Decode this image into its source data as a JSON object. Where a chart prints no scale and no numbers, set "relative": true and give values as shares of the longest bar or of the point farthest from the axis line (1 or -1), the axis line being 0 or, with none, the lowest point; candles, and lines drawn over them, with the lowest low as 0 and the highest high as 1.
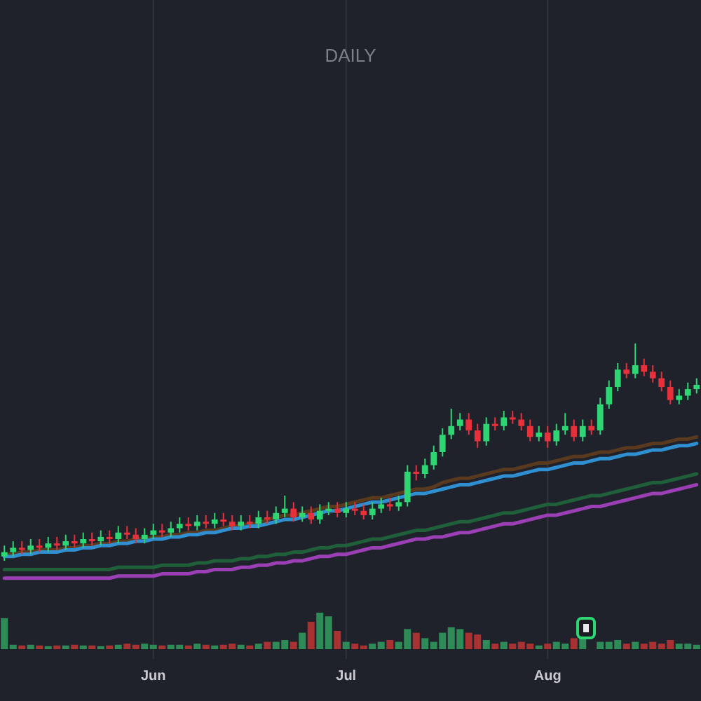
{
  "chart_data": [
    {
      "type": "candlestick",
      "title": "DAILY",
      "relative": true,
      "grid": "x",
      "categories": [
        null,
        null,
        null,
        null,
        null,
        null,
        null,
        null,
        null,
        null,
        null,
        null,
        null,
        null,
        null,
        null,
        null,
        null,
        null,
        null,
        null,
        null,
        null,
        null,
        null,
        null,
        null,
        null,
        null,
        null,
        null,
        null,
        null,
        null,
        null,
        null,
        null,
        null,
        null,
        null,
        null,
        null,
        null,
        null,
        null,
        null,
        null,
        null,
        null,
        null,
        null,
        null,
        null,
        null,
        null,
        null,
        null,
        null,
        null,
        null,
        null,
        null,
        null,
        null,
        null,
        null,
        null,
        null,
        null,
        null,
        null,
        null,
        null,
        null,
        null,
        null,
        null,
        null,
        null,
        null
      ],
      "ohlc": [
        [
          0.02,
          0.07,
          0,
          0.04
        ],
        [
          0.04,
          0.09,
          0.02,
          0.06
        ],
        [
          0.06,
          0.09,
          0.03,
          0.05
        ],
        [
          0.05,
          0.1,
          0.03,
          0.07
        ],
        [
          0.07,
          0.1,
          0.04,
          0.06
        ],
        [
          0.06,
          0.11,
          0.04,
          0.08
        ],
        [
          0.08,
          0.11,
          0.05,
          0.07
        ],
        [
          0.07,
          0.12,
          0.05,
          0.09
        ],
        [
          0.09,
          0.12,
          0.06,
          0.08
        ],
        [
          0.08,
          0.13,
          0.06,
          0.1
        ],
        [
          0.1,
          0.13,
          0.07,
          0.09
        ],
        [
          0.09,
          0.14,
          0.07,
          0.11
        ],
        [
          0.11,
          0.14,
          0.08,
          0.1
        ],
        [
          0.1,
          0.16,
          0.08,
          0.13
        ],
        [
          0.13,
          0.16,
          0.1,
          0.12
        ],
        [
          0.12,
          0.15,
          0.08,
          0.1
        ],
        [
          0.1,
          0.15,
          0.08,
          0.12
        ],
        [
          0.12,
          0.17,
          0.1,
          0.14
        ],
        [
          0.14,
          0.17,
          0.11,
          0.13
        ],
        [
          0.13,
          0.18,
          0.11,
          0.15
        ],
        [
          0.15,
          0.2,
          0.13,
          0.17
        ],
        [
          0.17,
          0.2,
          0.14,
          0.16
        ],
        [
          0.16,
          0.21,
          0.14,
          0.18
        ],
        [
          0.18,
          0.21,
          0.15,
          0.17
        ],
        [
          0.17,
          0.22,
          0.15,
          0.19
        ],
        [
          0.19,
          0.22,
          0.16,
          0.18
        ],
        [
          0.18,
          0.21,
          0.14,
          0.16
        ],
        [
          0.16,
          0.21,
          0.14,
          0.18
        ],
        [
          0.18,
          0.21,
          0.15,
          0.17
        ],
        [
          0.17,
          0.23,
          0.15,
          0.2
        ],
        [
          0.2,
          0.23,
          0.17,
          0.19
        ],
        [
          0.19,
          0.25,
          0.17,
          0.22
        ],
        [
          0.22,
          0.3,
          0.2,
          0.24
        ],
        [
          0.24,
          0.27,
          0.18,
          0.2
        ],
        [
          0.2,
          0.25,
          0.18,
          0.22
        ],
        [
          0.22,
          0.25,
          0.17,
          0.19
        ],
        [
          0.19,
          0.26,
          0.17,
          0.23
        ],
        [
          0.23,
          0.27,
          0.21,
          0.24
        ],
        [
          0.24,
          0.27,
          0.2,
          0.22
        ],
        [
          0.22,
          0.27,
          0.2,
          0.24
        ],
        [
          0.24,
          0.27,
          0.21,
          0.23
        ],
        [
          0.23,
          0.26,
          0.19,
          0.21
        ],
        [
          0.21,
          0.27,
          0.19,
          0.24
        ],
        [
          0.24,
          0.29,
          0.22,
          0.26
        ],
        [
          0.26,
          0.29,
          0.23,
          0.25
        ],
        [
          0.25,
          0.3,
          0.23,
          0.27
        ],
        [
          0.27,
          0.44,
          0.25,
          0.41
        ],
        [
          0.41,
          0.44,
          0.37,
          0.4
        ],
        [
          0.4,
          0.47,
          0.38,
          0.44
        ],
        [
          0.44,
          0.53,
          0.42,
          0.5
        ],
        [
          0.5,
          0.61,
          0.48,
          0.58
        ],
        [
          0.58,
          0.7,
          0.56,
          0.62
        ],
        [
          0.62,
          0.68,
          0.6,
          0.65
        ],
        [
          0.65,
          0.68,
          0.58,
          0.6
        ],
        [
          0.6,
          0.63,
          0.52,
          0.55
        ],
        [
          0.55,
          0.66,
          0.53,
          0.63
        ],
        [
          0.63,
          0.66,
          0.6,
          0.62
        ],
        [
          0.62,
          0.69,
          0.6,
          0.66
        ],
        [
          0.66,
          0.69,
          0.63,
          0.65
        ],
        [
          0.65,
          0.68,
          0.6,
          0.62
        ],
        [
          0.62,
          0.65,
          0.55,
          0.57
        ],
        [
          0.57,
          0.62,
          0.55,
          0.59
        ],
        [
          0.59,
          0.62,
          0.52,
          0.55
        ],
        [
          0.55,
          0.63,
          0.53,
          0.6
        ],
        [
          0.6,
          0.68,
          0.58,
          0.62
        ],
        [
          0.62,
          0.65,
          0.55,
          0.57
        ],
        [
          0.57,
          0.65,
          0.55,
          0.62
        ],
        [
          0.62,
          0.65,
          0.58,
          0.6
        ],
        [
          0.6,
          0.75,
          0.58,
          0.72
        ],
        [
          0.72,
          0.83,
          0.7,
          0.8
        ],
        [
          0.8,
          0.91,
          0.78,
          0.88
        ],
        [
          0.88,
          0.91,
          0.84,
          0.86
        ],
        [
          0.86,
          1,
          0.84,
          0.9
        ],
        [
          0.9,
          0.93,
          0.85,
          0.87
        ],
        [
          0.87,
          0.9,
          0.82,
          0.84
        ],
        [
          0.84,
          0.87,
          0.78,
          0.8
        ],
        [
          0.8,
          0.83,
          0.72,
          0.74
        ],
        [
          0.74,
          0.79,
          0.72,
          0.76
        ],
        [
          0.76,
          0.82,
          0.74,
          0.79
        ],
        [
          0.79,
          0.84,
          0.77,
          0.81
        ]
      ],
      "series": [
        {
          "type": "line",
          "color": "#1f5f3a",
          "values": [
            -0.04,
            -0.04,
            -0.04,
            -0.04,
            -0.04,
            -0.04,
            -0.04,
            -0.04,
            -0.04,
            -0.04,
            -0.04,
            -0.04,
            -0.04,
            -0.03,
            -0.03,
            -0.03,
            -0.03,
            -0.03,
            -0.02,
            -0.02,
            -0.02,
            -0.02,
            -0.01,
            -0.01,
            0,
            0,
            0,
            0.01,
            0.01,
            0.02,
            0.02,
            0.03,
            0.03,
            0.04,
            0.04,
            0.05,
            0.06,
            0.06,
            0.07,
            0.07,
            0.08,
            0.09,
            0.1,
            0.1,
            0.11,
            0.12,
            0.13,
            0.14,
            0.14,
            0.15,
            0.16,
            0.17,
            0.18,
            0.18,
            0.19,
            0.2,
            0.21,
            0.22,
            0.22,
            0.23,
            0.24,
            0.25,
            0.26,
            0.26,
            0.27,
            0.28,
            0.29,
            0.3,
            0.3,
            0.31,
            0.32,
            0.33,
            0.34,
            0.35,
            0.36,
            0.36,
            0.37,
            0.38,
            0.39,
            0.4
          ]
        },
        {
          "type": "line",
          "color": "#9b3fb5",
          "values": [
            -0.08,
            -0.08,
            -0.08,
            -0.08,
            -0.08,
            -0.08,
            -0.08,
            -0.08,
            -0.08,
            -0.08,
            -0.08,
            -0.08,
            -0.08,
            -0.07,
            -0.07,
            -0.07,
            -0.07,
            -0.07,
            -0.06,
            -0.06,
            -0.06,
            -0.06,
            -0.05,
            -0.05,
            -0.04,
            -0.04,
            -0.04,
            -0.03,
            -0.03,
            -0.02,
            -0.02,
            -0.01,
            -0.01,
            0,
            0,
            0.01,
            0.02,
            0.02,
            0.03,
            0.03,
            0.04,
            0.05,
            0.06,
            0.06,
            0.07,
            0.08,
            0.09,
            0.1,
            0.1,
            0.11,
            0.11,
            0.12,
            0.13,
            0.13,
            0.14,
            0.15,
            0.16,
            0.17,
            0.17,
            0.18,
            0.19,
            0.2,
            0.21,
            0.21,
            0.22,
            0.23,
            0.24,
            0.25,
            0.25,
            0.26,
            0.27,
            0.28,
            0.29,
            0.3,
            0.31,
            0.31,
            0.32,
            0.33,
            0.34,
            0.35
          ]
        },
        {
          "type": "line",
          "color": "#5a3a1e",
          "values": [
            0.03,
            0.03,
            0.04,
            0.04,
            0.05,
            0.05,
            0.05,
            0.06,
            0.06,
            0.07,
            0.07,
            0.08,
            0.08,
            0.09,
            0.09,
            0.1,
            0.1,
            0.11,
            0.11,
            0.12,
            0.12,
            0.13,
            0.13,
            0.14,
            0.14,
            0.15,
            0.16,
            0.16,
            0.17,
            0.17,
            0.19,
            0.2,
            0.21,
            0.21,
            0.22,
            0.23,
            0.24,
            0.25,
            0.25,
            0.26,
            0.27,
            0.28,
            0.29,
            0.29,
            0.3,
            0.31,
            0.32,
            0.33,
            0.33,
            0.34,
            0.36,
            0.37,
            0.38,
            0.38,
            0.39,
            0.4,
            0.41,
            0.42,
            0.42,
            0.43,
            0.44,
            0.45,
            0.45,
            0.46,
            0.47,
            0.48,
            0.48,
            0.49,
            0.5,
            0.5,
            0.51,
            0.52,
            0.52,
            0.53,
            0.54,
            0.54,
            0.55,
            0.56,
            0.56,
            0.57
          ]
        },
        {
          "type": "line",
          "color": "#2f8fd0",
          "values": [
            0.02,
            0.02,
            0.03,
            0.03,
            0.04,
            0.04,
            0.04,
            0.05,
            0.05,
            0.06,
            0.06,
            0.07,
            0.07,
            0.08,
            0.08,
            0.09,
            0.09,
            0.1,
            0.1,
            0.11,
            0.11,
            0.12,
            0.12,
            0.13,
            0.13,
            0.14,
            0.15,
            0.15,
            0.16,
            0.16,
            0.17,
            0.18,
            0.19,
            0.19,
            0.2,
            0.21,
            0.22,
            0.23,
            0.23,
            0.24,
            0.25,
            0.26,
            0.27,
            0.27,
            0.28,
            0.29,
            0.3,
            0.31,
            0.31,
            0.32,
            0.33,
            0.34,
            0.35,
            0.35,
            0.36,
            0.37,
            0.38,
            0.39,
            0.39,
            0.4,
            0.41,
            0.42,
            0.42,
            0.43,
            0.44,
            0.45,
            0.45,
            0.46,
            0.47,
            0.47,
            0.48,
            0.49,
            0.49,
            0.5,
            0.51,
            0.51,
            0.52,
            0.53,
            0.53,
            0.54
          ]
        }
      ],
      "colors": [
        "#2ed573",
        "#2ed573",
        "#e8303a",
        "#2ed573",
        "#e8303a",
        "#2ed573",
        "#e8303a",
        "#2ed573",
        "#e8303a",
        "#2ed573",
        "#e8303a",
        "#2ed573",
        "#e8303a",
        "#2ed573",
        "#e8303a",
        "#e8303a",
        "#2ed573",
        "#2ed573",
        "#e8303a",
        "#2ed573",
        "#2ed573",
        "#e8303a",
        "#2ed573",
        "#e8303a",
        "#2ed573",
        "#e8303a",
        "#e8303a",
        "#2ed573",
        "#e8303a",
        "#2ed573",
        "#e8303a",
        "#2ed573",
        "#2ed573",
        "#e8303a",
        "#2ed573",
        "#e8303a",
        "#2ed573",
        "#2ed573",
        "#e8303a",
        "#2ed573",
        "#e8303a",
        "#e8303a",
        "#2ed573",
        "#2ed573",
        "#e8303a",
        "#2ed573",
        "#2ed573",
        "#e8303a",
        "#2ed573",
        "#2ed573",
        "#2ed573",
        "#2ed573",
        "#2ed573",
        "#e8303a",
        "#e8303a",
        "#2ed573",
        "#e8303a",
        "#2ed573",
        "#e8303a",
        "#e8303a",
        "#e8303a",
        "#2ed573",
        "#e8303a",
        "#2ed573",
        "#2ed573",
        "#e8303a",
        "#2ed573",
        "#e8303a",
        "#2ed573",
        "#2ed573",
        "#2ed573",
        "#e8303a",
        "#2ed573",
        "#e8303a",
        "#e8303a",
        "#e8303a",
        "#e8303a",
        "#2ed573",
        "#2ed573",
        "#2ed573"
      ]
    },
    {
      "type": "bar",
      "relative": true,
      "grid": "x",
      "categories": [
        null,
        null,
        null,
        null,
        null,
        null,
        null,
        null,
        null,
        null,
        null,
        null,
        null,
        null,
        null,
        null,
        null,
        "Jun",
        null,
        null,
        null,
        null,
        null,
        null,
        null,
        null,
        null,
        null,
        null,
        null,
        null,
        null,
        null,
        null,
        null,
        null,
        null,
        null,
        null,
        "Jul",
        null,
        null,
        null,
        null,
        null,
        null,
        null,
        null,
        null,
        null,
        null,
        null,
        null,
        null,
        null,
        null,
        null,
        null,
        null,
        null,
        null,
        null,
        "Aug",
        null,
        null,
        null,
        null,
        null,
        null,
        null,
        null,
        null,
        null,
        null,
        null,
        null,
        null,
        null,
        null,
        null
      ],
      "values": [
        0.85,
        0.12,
        0.1,
        0.12,
        0.1,
        0.08,
        0.1,
        0.1,
        0.12,
        0.1,
        0.1,
        0.08,
        0.1,
        0.12,
        0.15,
        0.12,
        0.15,
        0.12,
        0.1,
        0.12,
        0.12,
        0.1,
        0.15,
        0.12,
        0.1,
        0.12,
        0.15,
        0.12,
        0.1,
        0.15,
        0.2,
        0.2,
        0.25,
        0.2,
        0.45,
        0.75,
        1,
        0.9,
        0.5,
        0.2,
        0.15,
        0.1,
        0.15,
        0.2,
        0.25,
        0.2,
        0.55,
        0.45,
        0.3,
        0.2,
        0.45,
        0.6,
        0.55,
        0.45,
        0.4,
        0.25,
        0.15,
        0.2,
        0.15,
        0.2,
        0.15,
        0.1,
        0.15,
        0.2,
        0.15,
        0.3,
        0.35,
        null,
        0.2,
        0.2,
        0.25,
        0.15,
        0.2,
        0.15,
        0.2,
        0.15,
        0.25,
        0.15,
        0.15,
        0.12
      ],
      "colors": [
        "#2e8b57",
        "#2e8b57",
        "#a83232",
        "#2e8b57",
        "#a83232",
        "#2e8b57",
        "#a83232",
        "#2e8b57",
        "#a83232",
        "#2e8b57",
        "#a83232",
        "#2e8b57",
        "#a83232",
        "#2e8b57",
        "#a83232",
        "#a83232",
        "#2e8b57",
        "#2e8b57",
        "#a83232",
        "#2e8b57",
        "#2e8b57",
        "#a83232",
        "#2e8b57",
        "#a83232",
        "#2e8b57",
        "#a83232",
        "#a83232",
        "#2e8b57",
        "#a83232",
        "#2e8b57",
        "#a83232",
        "#2e8b57",
        "#2e8b57",
        "#a83232",
        "#2e8b57",
        "#a83232",
        "#2e8b57",
        "#2e8b57",
        "#a83232",
        "#2e8b57",
        "#a83232",
        "#a83232",
        "#2e8b57",
        "#2e8b57",
        "#a83232",
        "#2e8b57",
        "#2e8b57",
        "#a83232",
        "#2e8b57",
        "#2e8b57",
        "#2e8b57",
        "#2e8b57",
        "#2e8b57",
        "#a83232",
        "#a83232",
        "#2e8b57",
        "#a83232",
        "#2e8b57",
        "#a83232",
        "#a83232",
        "#a83232",
        "#2e8b57",
        "#a83232",
        "#2e8b57",
        "#2e8b57",
        "#a83232",
        "#2e8b57",
        null,
        "#2e8b57",
        "#2e8b57",
        "#2e8b57",
        "#a83232",
        "#2e8b57",
        "#a83232",
        "#a83232",
        "#a83232",
        "#a83232",
        "#2e8b57",
        "#2e8b57",
        "#2e8b57"
      ]
    }
  ]
}
